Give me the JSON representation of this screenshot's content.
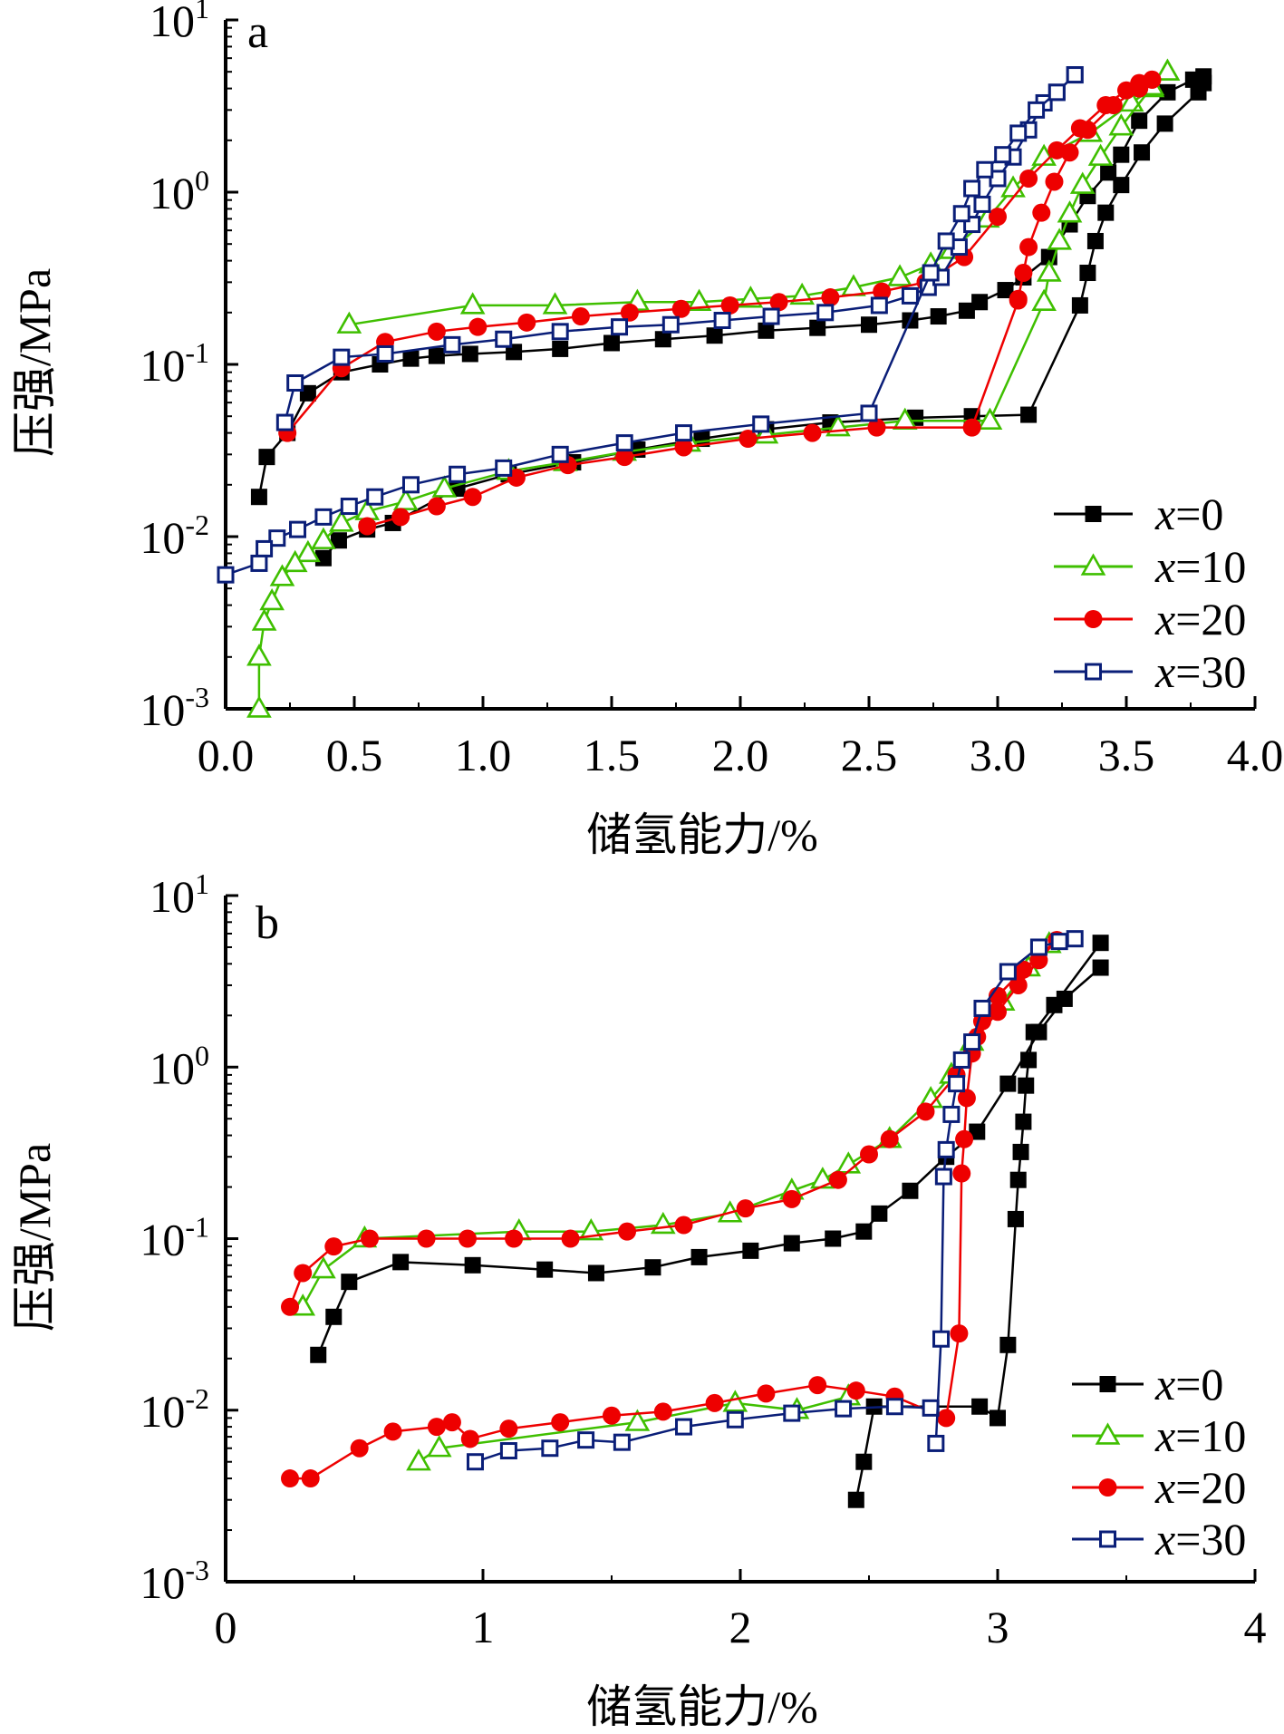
{
  "chart_data": [
    {
      "type": "line",
      "panel_label": "a",
      "xlabel": "储氢能力/%",
      "ylabel": "压强/MPa",
      "xlim": [
        0,
        4
      ],
      "ylim": [
        0.001,
        10
      ],
      "yscale": "log",
      "x_ticks": [
        "0.0",
        "0.5",
        "1.0",
        "1.5",
        "2.0",
        "2.5",
        "3.0",
        "3.5",
        "4.0"
      ],
      "y_ticks": [
        {
          "base": "10",
          "exp": "1"
        },
        {
          "base": "10",
          "exp": "0"
        },
        {
          "base": "10",
          "exp": "-1"
        },
        {
          "base": "10",
          "exp": "-2"
        },
        {
          "base": "10",
          "exp": "-3"
        }
      ],
      "grid": false,
      "legend_position": "bottom-right",
      "series": [
        {
          "name": "x=0",
          "color": "#000000",
          "marker": "filled-square",
          "x": [
            0.13,
            0.16,
            0.24,
            0.32,
            0.45,
            0.6,
            0.72,
            0.82,
            0.95,
            1.12,
            1.3,
            1.5,
            1.7,
            1.9,
            2.1,
            2.3,
            2.5,
            2.66,
            2.77,
            2.88,
            2.93,
            3.03,
            3.1,
            3.2,
            3.28,
            3.35,
            3.43,
            3.48,
            3.55,
            3.66,
            3.76,
            3.8
          ],
          "y": [
            0.017,
            0.029,
            0.04,
            0.068,
            0.09,
            0.1,
            0.108,
            0.112,
            0.115,
            0.118,
            0.123,
            0.133,
            0.14,
            0.147,
            0.157,
            0.163,
            0.17,
            0.18,
            0.19,
            0.205,
            0.23,
            0.27,
            0.32,
            0.42,
            0.65,
            0.95,
            1.3,
            1.65,
            2.6,
            3.8,
            4.5,
            4.7
          ]
        },
        {
          "name": "x=0",
          "color": "#000000",
          "marker": "filled-square",
          "x": [
            3.8,
            3.78,
            3.65,
            3.56,
            3.48,
            3.42,
            3.38,
            3.35,
            3.32,
            3.12,
            2.9,
            2.68,
            2.35,
            2.1,
            1.85,
            1.6,
            1.35,
            1.1,
            0.9,
            0.65,
            0.55,
            0.44,
            0.38
          ],
          "y": [
            4.3,
            3.8,
            2.5,
            1.7,
            1.1,
            0.76,
            0.52,
            0.34,
            0.22,
            0.051,
            0.05,
            0.049,
            0.046,
            0.042,
            0.037,
            0.032,
            0.027,
            0.023,
            0.019,
            0.012,
            0.011,
            0.0095,
            0.0075
          ]
        },
        {
          "name": "x=10",
          "color": "#3fbf00",
          "marker": "open-triangle",
          "x": [
            0.48,
            0.96,
            1.28,
            1.6,
            1.84,
            2.04,
            2.24,
            2.44,
            2.62,
            2.74,
            2.82,
            2.96,
            3.06,
            3.18,
            3.36,
            3.52,
            3.6,
            3.66
          ],
          "y": [
            0.17,
            0.22,
            0.22,
            0.23,
            0.23,
            0.24,
            0.25,
            0.28,
            0.32,
            0.38,
            0.46,
            0.7,
            1.05,
            1.6,
            2.2,
            3.3,
            4.0,
            5.0
          ]
        },
        {
          "name": "x=10",
          "color": "#3fbf00",
          "marker": "open-triangle",
          "x": [
            3.66,
            3.6,
            3.48,
            3.4,
            3.33,
            3.28,
            3.24,
            3.2,
            3.18,
            2.97,
            2.64,
            2.38,
            2.1,
            1.8,
            1.55,
            1.32,
            1.1,
            0.85,
            0.7,
            0.55,
            0.45,
            0.38,
            0.32,
            0.27,
            0.22,
            0.18,
            0.15,
            0.13,
            0.13
          ],
          "y": [
            5.0,
            4.1,
            2.4,
            1.6,
            1.1,
            0.75,
            0.52,
            0.34,
            0.23,
            0.047,
            0.047,
            0.043,
            0.039,
            0.035,
            0.031,
            0.027,
            0.024,
            0.019,
            0.016,
            0.014,
            0.012,
            0.0095,
            0.008,
            0.007,
            0.0058,
            0.0042,
            0.0032,
            0.002,
            0.001
          ]
        },
        {
          "name": "x=20",
          "color": "#ee0000",
          "marker": "filled-circle",
          "x": [
            0.24,
            0.45,
            0.62,
            0.82,
            0.98,
            1.17,
            1.38,
            1.57,
            1.77,
            1.96,
            2.15,
            2.35,
            2.55,
            2.72,
            2.87,
            3.0,
            3.12,
            3.23,
            3.32,
            3.42,
            3.5,
            3.55,
            3.6
          ],
          "y": [
            0.04,
            0.095,
            0.135,
            0.155,
            0.165,
            0.175,
            0.19,
            0.2,
            0.21,
            0.22,
            0.23,
            0.245,
            0.265,
            0.3,
            0.42,
            0.72,
            1.2,
            1.75,
            2.35,
            3.2,
            3.9,
            4.3,
            4.5
          ]
        },
        {
          "name": "x=20",
          "color": "#ee0000",
          "marker": "filled-circle",
          "x": [
            3.6,
            3.55,
            3.45,
            3.35,
            3.28,
            3.22,
            3.17,
            3.12,
            3.1,
            3.08,
            3.08,
            2.9,
            2.53,
            2.28,
            2.03,
            1.78,
            1.55,
            1.33,
            1.13,
            0.96,
            0.82,
            0.68,
            0.55
          ],
          "y": [
            4.5,
            4.0,
            3.2,
            2.3,
            1.7,
            1.15,
            0.76,
            0.48,
            0.34,
            0.24,
            0.235,
            0.043,
            0.043,
            0.04,
            0.037,
            0.033,
            0.029,
            0.026,
            0.022,
            0.017,
            0.015,
            0.013,
            0.0115
          ]
        },
        {
          "name": "x=30",
          "color": "#0a1e78",
          "marker": "open-square",
          "x": [
            0.23,
            0.27,
            0.45,
            0.62,
            0.88,
            1.08,
            1.3,
            1.53,
            1.73,
            1.93,
            2.12,
            2.33,
            2.54,
            2.66,
            2.73,
            2.78,
            2.85,
            2.9,
            2.94,
            3.0,
            3.06,
            3.12,
            3.18,
            3.23,
            3.3
          ],
          "y": [
            0.046,
            0.078,
            0.11,
            0.115,
            0.13,
            0.14,
            0.155,
            0.165,
            0.17,
            0.18,
            0.19,
            0.2,
            0.22,
            0.25,
            0.28,
            0.32,
            0.48,
            0.65,
            0.85,
            1.2,
            1.6,
            2.3,
            3.3,
            3.8,
            4.8
          ]
        },
        {
          "name": "x=30",
          "color": "#0a1e78",
          "marker": "open-square",
          "x": [
            3.3,
            3.23,
            3.15,
            3.08,
            3.02,
            2.95,
            2.9,
            2.86,
            2.8,
            2.74,
            2.5,
            2.08,
            1.78,
            1.55,
            1.3,
            1.08,
            0.9,
            0.72,
            0.58,
            0.48,
            0.38,
            0.28,
            0.2,
            0.15,
            0.13,
            0.0
          ],
          "y": [
            4.8,
            3.8,
            3.0,
            2.2,
            1.65,
            1.35,
            1.05,
            0.75,
            0.52,
            0.34,
            0.052,
            0.045,
            0.04,
            0.035,
            0.03,
            0.025,
            0.023,
            0.02,
            0.017,
            0.015,
            0.013,
            0.011,
            0.0098,
            0.0085,
            0.007,
            0.006
          ]
        }
      ],
      "legend": [
        "x=0",
        "x=10",
        "x=20",
        "x=30"
      ]
    },
    {
      "type": "line",
      "panel_label": "b",
      "xlabel": "储氢能力/%",
      "ylabel": "压强/MPa",
      "xlim": [
        0,
        4
      ],
      "ylim": [
        0.001,
        10
      ],
      "yscale": "log",
      "x_ticks": [
        "0",
        "1",
        "2",
        "3",
        "4"
      ],
      "y_ticks": [
        {
          "base": "10",
          "exp": "1"
        },
        {
          "base": "10",
          "exp": "0"
        },
        {
          "base": "10",
          "exp": "-1"
        },
        {
          "base": "10",
          "exp": "-2"
        },
        {
          "base": "10",
          "exp": "-3"
        }
      ],
      "grid": false,
      "legend_position": "bottom-right",
      "series": [
        {
          "name": "x=0",
          "color": "#000000",
          "marker": "filled-square",
          "x": [
            0.36,
            0.42,
            0.48,
            0.68,
            0.96,
            1.24,
            1.44,
            1.66,
            1.84,
            2.04,
            2.2,
            2.36,
            2.48,
            2.54,
            2.66,
            2.8,
            2.92,
            3.04,
            3.16,
            3.26,
            3.4
          ],
          "y": [
            0.021,
            0.035,
            0.056,
            0.073,
            0.07,
            0.066,
            0.063,
            0.068,
            0.078,
            0.085,
            0.094,
            0.1,
            0.11,
            0.14,
            0.19,
            0.3,
            0.42,
            0.8,
            1.6,
            2.5,
            3.8
          ]
        },
        {
          "name": "x=0",
          "color": "#000000",
          "marker": "filled-square",
          "x": [
            3.4,
            3.22,
            3.14,
            3.12,
            3.11,
            3.1,
            3.09,
            3.08,
            3.07,
            3.04,
            3.0,
            2.93,
            2.6,
            2.52,
            2.48,
            2.45
          ],
          "y": [
            5.3,
            2.3,
            1.6,
            1.1,
            0.78,
            0.48,
            0.32,
            0.22,
            0.13,
            0.024,
            0.009,
            0.0105,
            0.0105,
            0.0105,
            0.005,
            0.003
          ]
        },
        {
          "name": "x=10",
          "color": "#3fbf00",
          "marker": "open-triangle",
          "x": [
            0.3,
            0.38,
            0.54,
            1.14,
            1.42,
            1.7,
            1.96,
            2.2,
            2.32,
            2.42,
            2.58,
            2.74,
            2.82,
            2.9,
            3.02,
            3.12,
            3.2
          ],
          "y": [
            0.04,
            0.066,
            0.1,
            0.11,
            0.11,
            0.12,
            0.14,
            0.19,
            0.22,
            0.27,
            0.38,
            0.65,
            0.9,
            1.4,
            2.4,
            3.8,
            5.2
          ]
        },
        {
          "name": "x=10",
          "color": "#3fbf00",
          "marker": "open-triangle",
          "x": [
            0.75,
            0.83,
            1.6,
            1.98,
            2.22,
            2.42
          ],
          "y": [
            0.005,
            0.006,
            0.0085,
            0.011,
            0.01,
            0.012
          ]
        },
        {
          "name": "x=20",
          "color": "#ee0000",
          "marker": "filled-circle",
          "x": [
            0.25,
            0.3,
            0.42,
            0.56,
            0.78,
            0.94,
            1.12,
            1.34,
            1.56,
            1.78,
            2.02,
            2.2,
            2.38,
            2.5,
            2.58,
            2.72,
            2.84,
            2.92,
            3.0,
            3.08,
            3.16,
            3.23
          ],
          "y": [
            0.04,
            0.063,
            0.09,
            0.1,
            0.1,
            0.1,
            0.1,
            0.1,
            0.11,
            0.12,
            0.15,
            0.17,
            0.22,
            0.31,
            0.38,
            0.55,
            0.9,
            1.5,
            2.1,
            3.0,
            4.2,
            5.5
          ]
        },
        {
          "name": "x=20",
          "color": "#ee0000",
          "marker": "filled-circle",
          "x": [
            3.23,
            3.1,
            3.0,
            2.94,
            2.9,
            2.88,
            2.87,
            2.86,
            2.85,
            2.8,
            2.6,
            2.45,
            2.3,
            2.1,
            1.9,
            1.7,
            1.5,
            1.3,
            1.1,
            0.95,
            0.88,
            0.82,
            0.65,
            0.52,
            0.33,
            0.25
          ],
          "y": [
            5.5,
            3.7,
            2.6,
            1.85,
            1.2,
            0.66,
            0.38,
            0.24,
            0.028,
            0.009,
            0.012,
            0.013,
            0.014,
            0.0125,
            0.011,
            0.0098,
            0.0093,
            0.0085,
            0.0078,
            0.0068,
            0.0085,
            0.008,
            0.0075,
            0.006,
            0.004,
            0.004
          ]
        },
        {
          "name": "x=30",
          "color": "#0a1e78",
          "marker": "open-square",
          "x": [
            0.97,
            1.1,
            1.26,
            1.4,
            1.54,
            1.78,
            1.98,
            2.2,
            2.4,
            2.6,
            2.74
          ],
          "y": [
            0.005,
            0.0058,
            0.006,
            0.0067,
            0.0065,
            0.008,
            0.0088,
            0.0096,
            0.0102,
            0.0105,
            0.0103
          ]
        },
        {
          "name": "x=30",
          "color": "#0a1e78",
          "marker": "open-square",
          "x": [
            2.76,
            2.78,
            2.79,
            2.8,
            2.82,
            2.84,
            2.86,
            2.9,
            2.94,
            3.04,
            3.16,
            3.24,
            3.3
          ],
          "y": [
            0.0064,
            0.026,
            0.23,
            0.33,
            0.53,
            0.8,
            1.1,
            1.4,
            2.2,
            3.6,
            5.0,
            5.4,
            5.6
          ]
        }
      ],
      "legend": [
        "x=0",
        "x=10",
        "x=20",
        "x=30"
      ]
    }
  ]
}
